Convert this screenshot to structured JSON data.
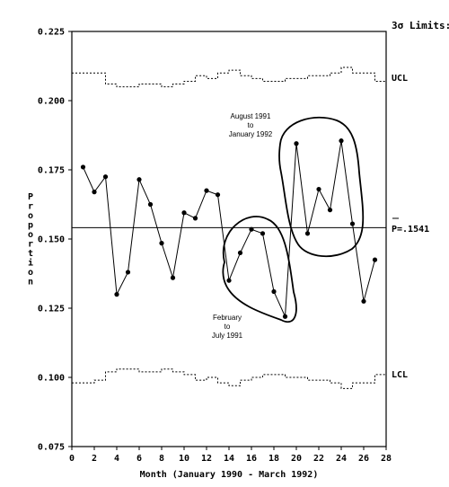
{
  "chart_data": {
    "type": "line",
    "xlabel": "Month (January 1990 - March 1992)",
    "ylabel": "Proportion",
    "xlim": [
      0,
      28
    ],
    "ylim": [
      0.075,
      0.225
    ],
    "x_ticks": [
      "0",
      "2",
      "4",
      "6",
      "8",
      "10",
      "12",
      "14",
      "16",
      "18",
      "20",
      "22",
      "24",
      "26",
      "28"
    ],
    "y_ticks": [
      "0.075",
      "0.100",
      "0.125",
      "0.150",
      "0.175",
      "0.200",
      "0.225"
    ],
    "grid": false,
    "limits_title": "3σ Limits:",
    "center_line": {
      "label": "P=.1541",
      "value": 0.1541
    },
    "ucl": {
      "label": "UCL",
      "x_steps": [
        0,
        1,
        2,
        3,
        4,
        5,
        6,
        7,
        8,
        9,
        10,
        11,
        12,
        13,
        14,
        15,
        16,
        17,
        18,
        19,
        20,
        21,
        22,
        23,
        24,
        25,
        26,
        27,
        28
      ],
      "values": [
        0.21,
        0.21,
        0.21,
        0.206,
        0.205,
        0.205,
        0.206,
        0.206,
        0.205,
        0.206,
        0.207,
        0.209,
        0.208,
        0.21,
        0.211,
        0.209,
        0.208,
        0.207,
        0.207,
        0.208,
        0.208,
        0.209,
        0.209,
        0.21,
        0.212,
        0.21,
        0.21,
        0.207,
        0.207
      ]
    },
    "lcl": {
      "label": "LCL",
      "x_steps": [
        0,
        1,
        2,
        3,
        4,
        5,
        6,
        7,
        8,
        9,
        10,
        11,
        12,
        13,
        14,
        15,
        16,
        17,
        18,
        19,
        20,
        21,
        22,
        23,
        24,
        25,
        26,
        27,
        28
      ],
      "values": [
        0.098,
        0.098,
        0.099,
        0.102,
        0.103,
        0.103,
        0.102,
        0.102,
        0.103,
        0.102,
        0.101,
        0.099,
        0.1,
        0.098,
        0.097,
        0.099,
        0.1,
        0.101,
        0.101,
        0.1,
        0.1,
        0.099,
        0.099,
        0.098,
        0.096,
        0.098,
        0.098,
        0.101,
        0.101
      ]
    },
    "series": [
      {
        "x": [
          1,
          2,
          3,
          4,
          5,
          6,
          7,
          8,
          9,
          10,
          11,
          12,
          13,
          14,
          15,
          16,
          17,
          18,
          19,
          20,
          21,
          22,
          23,
          24,
          25,
          26,
          27
        ],
        "values": [
          0.176,
          0.167,
          0.1725,
          0.13,
          0.138,
          0.1715,
          0.1625,
          0.1485,
          0.136,
          0.1595,
          0.1575,
          0.1675,
          0.166,
          0.135,
          0.145,
          0.1535,
          0.152,
          0.131,
          0.122,
          0.1845,
          0.152,
          0.168,
          0.1605,
          0.1855,
          0.1555,
          0.1275,
          0.1425
        ]
      }
    ],
    "annotations": [
      {
        "line1": "August 1991",
        "line2": "to",
        "line3": "January 1992"
      },
      {
        "line1": "February",
        "line2": "to",
        "line3": "July 1991"
      }
    ]
  }
}
